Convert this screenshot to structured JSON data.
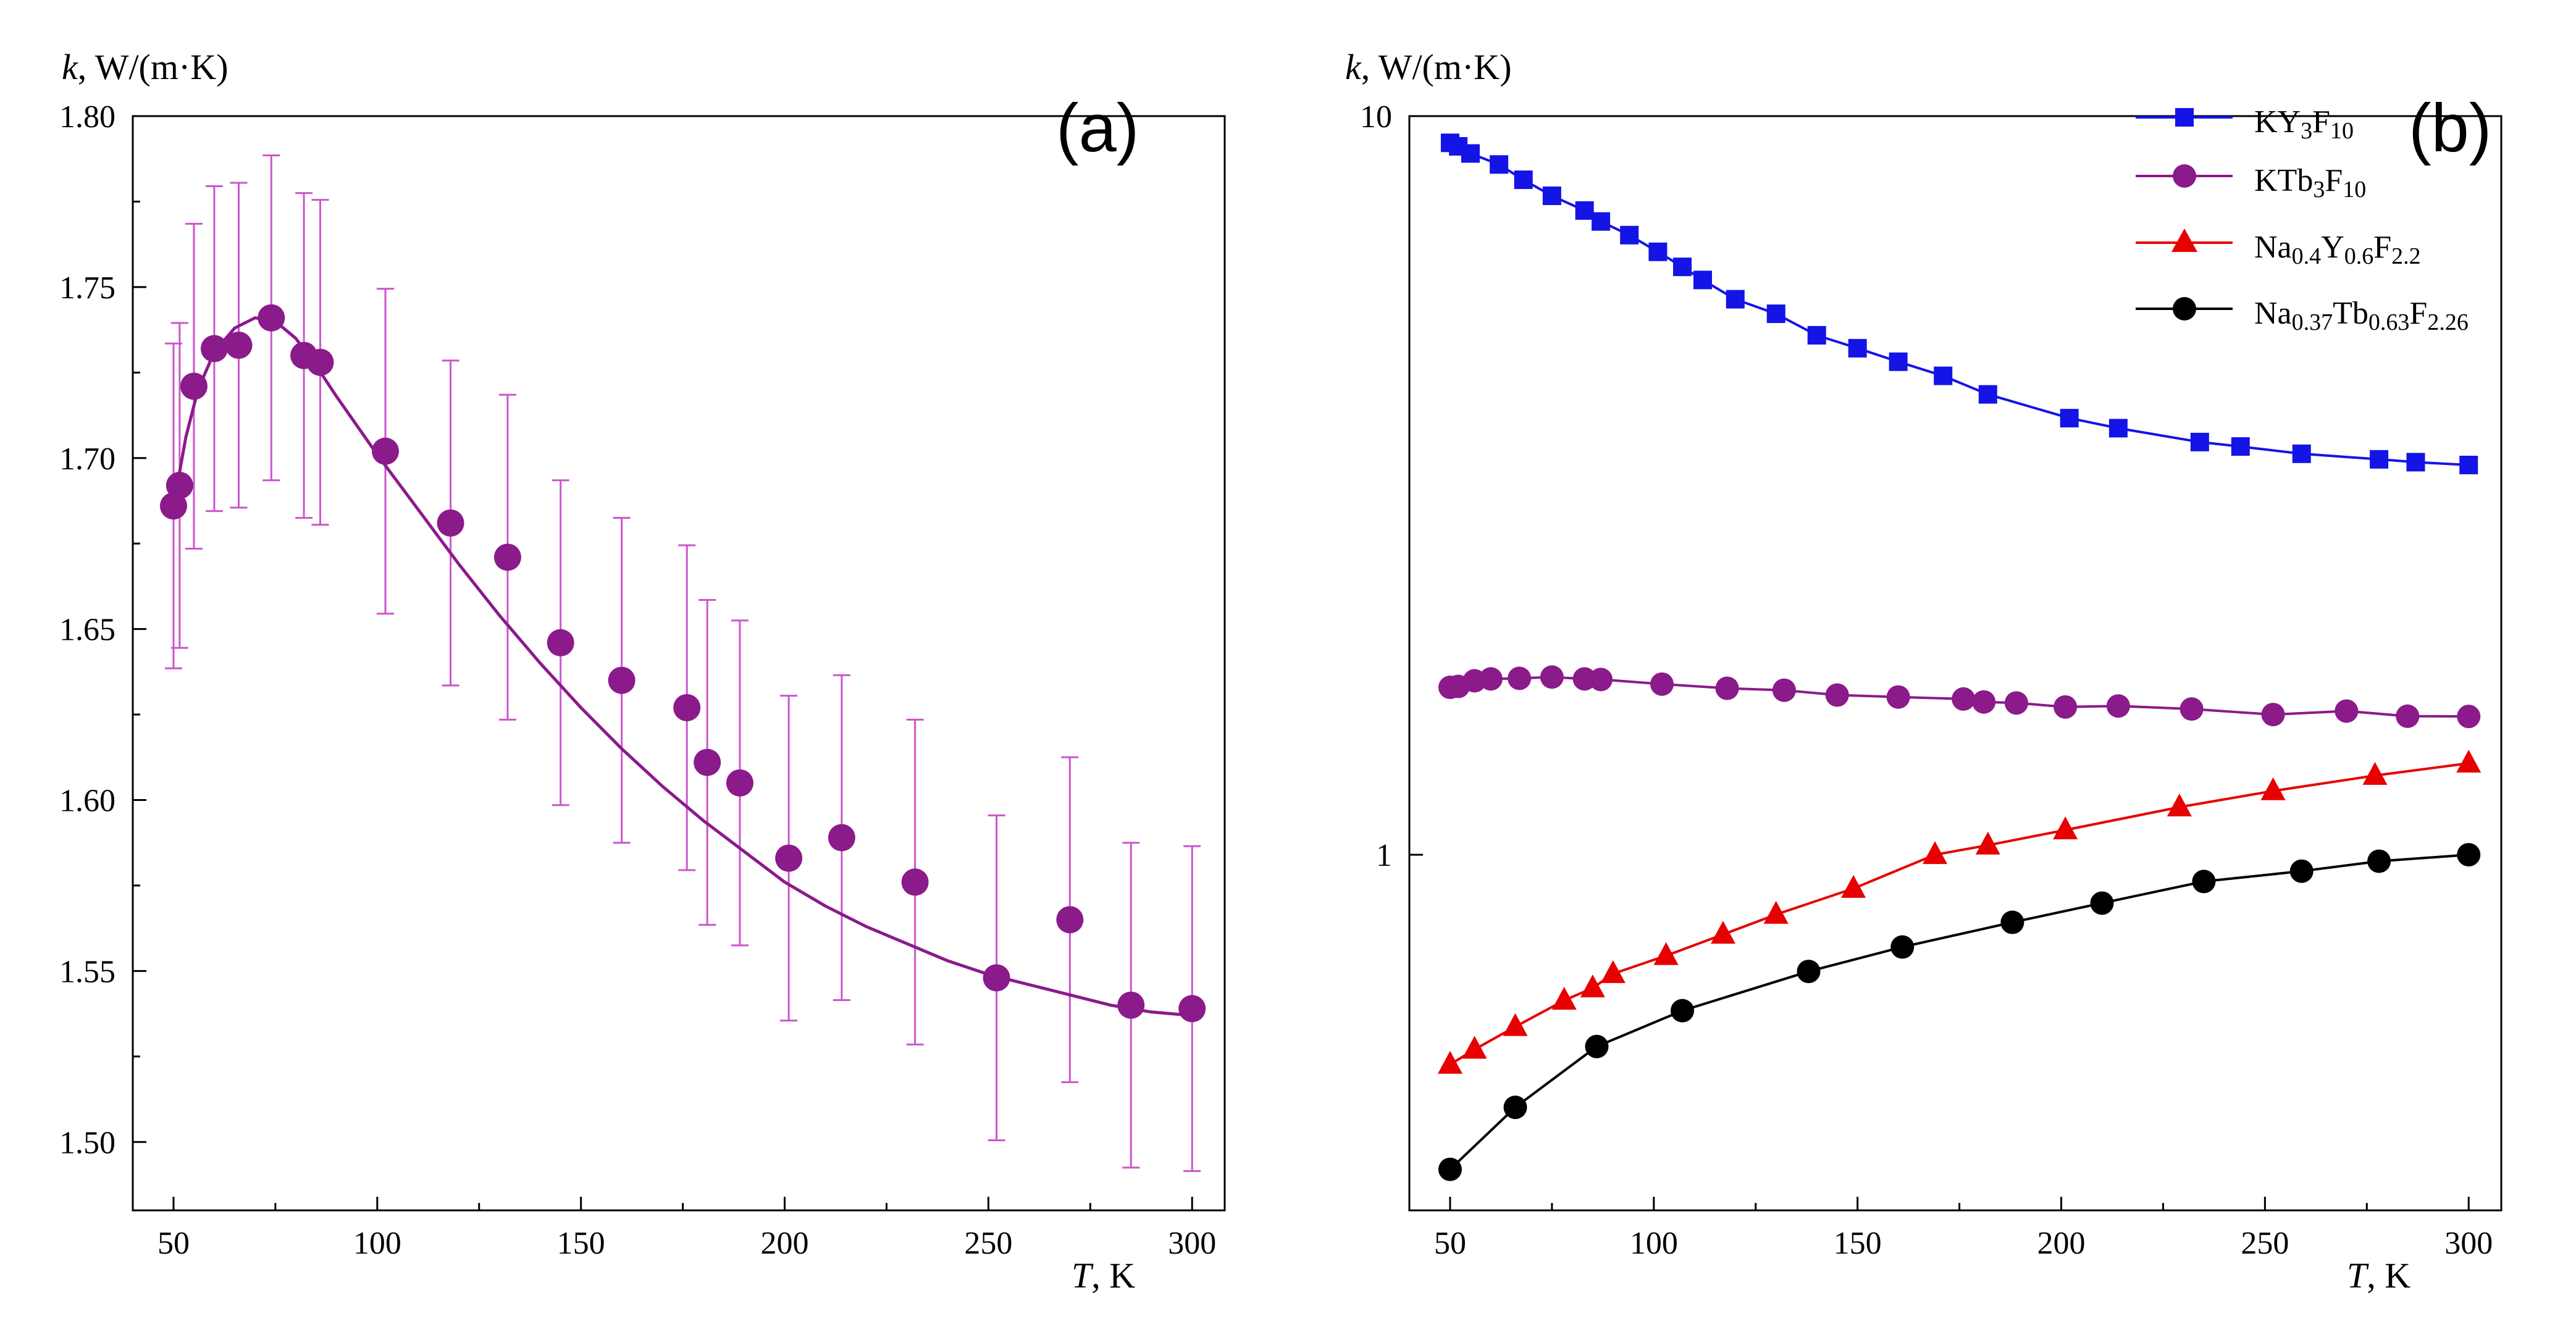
{
  "chart_data": [
    {
      "type": "scatter",
      "panel_label": "(a)",
      "ylabel_italic": "k",
      "ylabel_rest": ", W/(m·K)",
      "xlabel_italic": "T",
      "xlabel_rest": ", K",
      "xlim": [
        40,
        308
      ],
      "ylim": [
        1.48,
        1.8
      ],
      "xticks": [
        50,
        100,
        150,
        200,
        250,
        300
      ],
      "xtick_labels": [
        "50",
        "100",
        "150",
        "200",
        "250",
        "300"
      ],
      "yticks": [
        1.5,
        1.55,
        1.6,
        1.65,
        1.7,
        1.75,
        1.8
      ],
      "ytick_labels": [
        "1.50",
        "1.55",
        "1.60",
        "1.65",
        "1.70",
        "1.75",
        "1.80"
      ],
      "grid": false,
      "color": "#8B1A8B",
      "errorbar_color": "#CC55CC",
      "error": 0.0475,
      "series": [
        {
          "name": "k",
          "x": [
            50,
            51.5,
            55,
            60,
            66,
            74,
            82,
            86,
            102,
            118,
            132,
            145,
            160,
            176,
            181,
            189,
            201,
            214,
            232,
            252,
            270,
            285,
            300
          ],
          "y": [
            1.686,
            1.692,
            1.721,
            1.732,
            1.733,
            1.741,
            1.73,
            1.728,
            1.702,
            1.681,
            1.671,
            1.646,
            1.635,
            1.627,
            1.611,
            1.605,
            1.583,
            1.589,
            1.576,
            1.548,
            1.565,
            1.54,
            1.539
          ]
        }
      ],
      "fit_curve": {
        "x": [
          50,
          53,
          56,
          60,
          65,
          70,
          75,
          80,
          85,
          90,
          100,
          110,
          120,
          130,
          140,
          150,
          160,
          170,
          180,
          190,
          200,
          210,
          220,
          230,
          240,
          250,
          260,
          270,
          280,
          290,
          300
        ],
        "y": [
          1.686,
          1.706,
          1.72,
          1.731,
          1.738,
          1.741,
          1.74,
          1.735,
          1.727,
          1.718,
          1.701,
          1.685,
          1.669,
          1.654,
          1.64,
          1.627,
          1.615,
          1.604,
          1.594,
          1.585,
          1.576,
          1.569,
          1.563,
          1.558,
          1.553,
          1.549,
          1.546,
          1.543,
          1.54,
          1.538,
          1.537
        ]
      }
    },
    {
      "type": "line",
      "panel_label": "(b)",
      "ylabel_italic": "k",
      "ylabel_rest": ", W/(m·K)",
      "xlabel_italic": "T",
      "xlabel_rest": ", K",
      "yscale": "log",
      "xlim": [
        40,
        308
      ],
      "ylim": [
        0.33,
        10
      ],
      "xticks": [
        50,
        100,
        150,
        200,
        250,
        300
      ],
      "xtick_labels": [
        "50",
        "100",
        "150",
        "200",
        "250",
        "300"
      ],
      "yticks": [
        1,
        10
      ],
      "ytick_labels": [
        "1",
        "10"
      ],
      "grid": false,
      "legend_position": "top-right",
      "series": [
        {
          "name": "KY3F10",
          "legend": {
            "a": "KY",
            "as": "3",
            "b": "F",
            "bs": "10",
            "c": "",
            "cs": ""
          },
          "marker": "square",
          "color": "#1414E6",
          "x": [
            50,
            52,
            55,
            62,
            68,
            75,
            83,
            87,
            94,
            101,
            107,
            112,
            120,
            130,
            140,
            150,
            160,
            171,
            182,
            202,
            214,
            234,
            244,
            259,
            278,
            287,
            300
          ],
          "y": [
            9.2,
            9.1,
            8.9,
            8.6,
            8.2,
            7.8,
            7.45,
            7.2,
            6.9,
            6.55,
            6.25,
            6.0,
            5.65,
            5.4,
            5.05,
            4.85,
            4.65,
            4.45,
            4.2,
            3.9,
            3.78,
            3.62,
            3.57,
            3.49,
            3.43,
            3.4,
            3.37
          ]
        },
        {
          "name": "KTb3F10",
          "legend": {
            "a": "KTb",
            "as": "3",
            "b": "F",
            "bs": "10",
            "c": "",
            "cs": ""
          },
          "marker": "circle",
          "color": "#8B1A8B",
          "x": [
            50,
            52,
            56,
            60,
            67,
            75,
            83,
            87,
            102,
            118,
            132,
            145,
            160,
            176,
            181,
            189,
            201,
            214,
            232,
            252,
            270,
            285,
            300
          ],
          "y": [
            1.685,
            1.69,
            1.72,
            1.73,
            1.733,
            1.74,
            1.73,
            1.727,
            1.702,
            1.68,
            1.67,
            1.645,
            1.635,
            1.625,
            1.61,
            1.605,
            1.585,
            1.59,
            1.575,
            1.548,
            1.565,
            1.54,
            1.539
          ]
        },
        {
          "name": "Na0.4Y0.6F2.2",
          "legend": {
            "a": "Na",
            "as": "0.4",
            "b": "Y",
            "bs": "0.6",
            "c": "F",
            "cs": "2.2"
          },
          "marker": "triangle",
          "color": "#E60000",
          "x": [
            50,
            56,
            66,
            78,
            85,
            90,
            103,
            117,
            130,
            149,
            169,
            182,
            201,
            229,
            252,
            277,
            300
          ],
          "y": [
            0.52,
            0.545,
            0.585,
            0.635,
            0.66,
            0.69,
            0.73,
            0.78,
            0.83,
            0.9,
            1.0,
            1.03,
            1.08,
            1.16,
            1.22,
            1.28,
            1.33
          ]
        },
        {
          "name": "Na0.37Tb0.63F2.26",
          "legend": {
            "a": "Na",
            "as": "0.37",
            "b": "Tb",
            "bs": "0.63",
            "c": "F",
            "cs": "2.26"
          },
          "marker": "circle",
          "color": "#000000",
          "x": [
            50,
            66,
            86,
            107,
            138,
            161,
            188,
            210,
            235,
            259,
            278,
            300
          ],
          "y": [
            0.375,
            0.455,
            0.55,
            0.615,
            0.695,
            0.75,
            0.81,
            0.86,
            0.92,
            0.95,
            0.98,
            1.0
          ]
        }
      ]
    }
  ]
}
